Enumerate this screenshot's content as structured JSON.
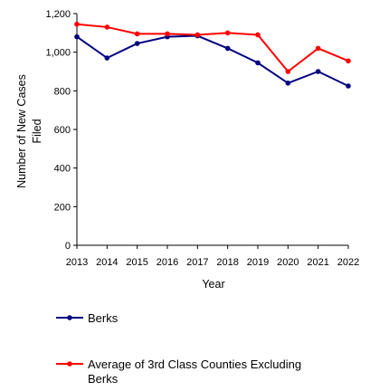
{
  "chart_data": {
    "type": "line",
    "x": [
      "2013",
      "2014",
      "2015",
      "2016",
      "2017",
      "2018",
      "2019",
      "2020",
      "2021",
      "2022"
    ],
    "series": [
      {
        "name": "Berks",
        "color": "#000080",
        "values": [
          1080,
          970,
          1045,
          1080,
          1085,
          1020,
          945,
          840,
          900,
          825
        ]
      },
      {
        "name": "Average of 3rd Class Counties Excluding Berks",
        "color": "#ff0000",
        "values": [
          1145,
          1130,
          1095,
          1095,
          1090,
          1100,
          1090,
          900,
          1020,
          955
        ]
      }
    ],
    "xlabel": "Year",
    "ylabel_lines": [
      "Number of New Cases",
      "Filed"
    ],
    "ylim": [
      0,
      1200
    ],
    "yticks": [
      0,
      200,
      400,
      600,
      800,
      1000,
      1200
    ],
    "ytick_labels": [
      "0",
      "200",
      "400",
      "600",
      "800",
      "1,000",
      "1,200"
    ],
    "grid": false,
    "legend_position": "bottom-left"
  }
}
